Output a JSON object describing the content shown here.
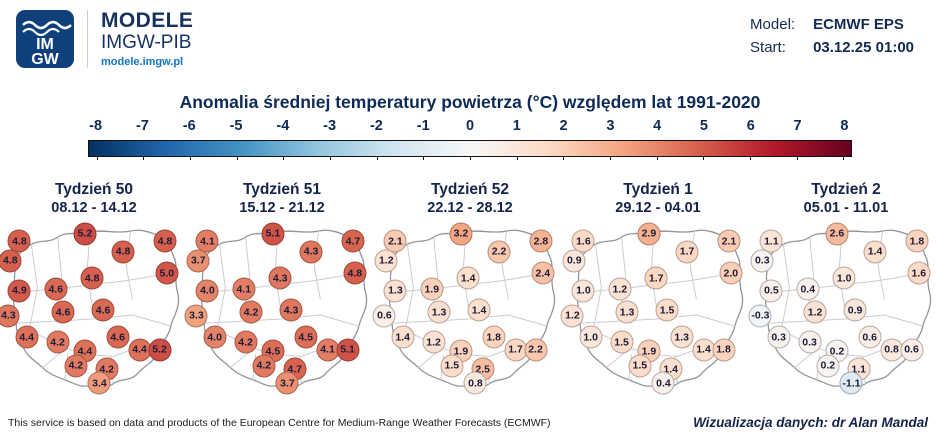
{
  "header": {
    "brand_name": "MODELE",
    "brand_sub": "IMGW-PIB",
    "brand_url": "modele.imgw.pl",
    "logo_top": "IM",
    "logo_bottom": "GW",
    "model_label": "Model:",
    "model_value": "ECMWF EPS",
    "start_label": "Start:",
    "start_value": "03.12.25 01:00"
  },
  "title": "Anomalia średniej temperatury powietrza (°C) względem lat 1991-2020",
  "colorbar": {
    "ticks": [
      -8,
      -7,
      -6,
      -5,
      -4,
      -3,
      -2,
      -1,
      0,
      1,
      2,
      3,
      4,
      5,
      6,
      7,
      8
    ],
    "stops": [
      "#053061",
      "#2166ac",
      "#4393c3",
      "#92c5de",
      "#d1e5f0",
      "#f7f7f7",
      "#fddbc7",
      "#f4a582",
      "#d6604d",
      "#b2182b",
      "#67001f"
    ],
    "min": -8,
    "max": 8
  },
  "footer": {
    "left": "This service is based on data and products of the European Centre for Medium-Range Weather Forecasts (ECMWF)",
    "right": "Wizualizacja danych: dr Alan Mandal"
  },
  "chart_data": {
    "type": "heatmap",
    "subtype": "bubble-maps-of-poland",
    "title": "Anomalia średniej temperatury powietrza (°C) względem lat 1991-2020",
    "units": "°C",
    "value_range": [
      -8,
      8
    ],
    "color_scale": [
      [
        -8,
        "#053061"
      ],
      [
        -6.4,
        "#2166ac"
      ],
      [
        -4.8,
        "#4393c3"
      ],
      [
        -3.2,
        "#92c5de"
      ],
      [
        -1.6,
        "#d1e5f0"
      ],
      [
        0,
        "#f7f7f7"
      ],
      [
        1.6,
        "#fddbc7"
      ],
      [
        3.2,
        "#f4a582"
      ],
      [
        4.8,
        "#d6604d"
      ],
      [
        6.4,
        "#b2182b"
      ],
      [
        8,
        "#67001f"
      ]
    ],
    "stations": [
      {
        "x": 9,
        "y": 9
      },
      {
        "x": 45,
        "y": 5
      },
      {
        "x": 66,
        "y": 15
      },
      {
        "x": 89,
        "y": 9
      },
      {
        "x": 4,
        "y": 20
      },
      {
        "x": 90,
        "y": 27
      },
      {
        "x": 9,
        "y": 37
      },
      {
        "x": 29,
        "y": 36
      },
      {
        "x": 49,
        "y": 30
      },
      {
        "x": 3,
        "y": 51
      },
      {
        "x": 33,
        "y": 49
      },
      {
        "x": 55,
        "y": 48
      },
      {
        "x": 13,
        "y": 63
      },
      {
        "x": 30,
        "y": 66
      },
      {
        "x": 45,
        "y": 71
      },
      {
        "x": 63,
        "y": 63
      },
      {
        "x": 75,
        "y": 70
      },
      {
        "x": 86,
        "y": 70
      },
      {
        "x": 40,
        "y": 79
      },
      {
        "x": 57,
        "y": 81
      },
      {
        "x": 53,
        "y": 89
      }
    ],
    "panels": [
      {
        "title": "Tydzień 50",
        "dates": "08.12 - 14.12",
        "values": [
          4.8,
          5.2,
          4.8,
          4.8,
          4.8,
          5.0,
          4.9,
          4.6,
          4.8,
          4.3,
          4.6,
          4.6,
          4.4,
          4.2,
          4.4,
          4.6,
          4.4,
          5.2,
          4.2,
          4.2,
          3.4
        ]
      },
      {
        "title": "Tydzień 51",
        "dates": "15.12 - 21.12",
        "values": [
          4.1,
          5.1,
          4.3,
          4.7,
          3.7,
          4.8,
          4.0,
          4.1,
          4.3,
          3.3,
          4.2,
          4.3,
          4.0,
          4.2,
          4.5,
          4.5,
          4.1,
          5.1,
          4.2,
          4.7,
          3.7
        ]
      },
      {
        "title": "Tydzień 52",
        "dates": "22.12 - 28.12",
        "values": [
          2.1,
          3.2,
          2.2,
          2.8,
          1.2,
          2.4,
          1.3,
          1.9,
          1.4,
          0.6,
          1.3,
          1.4,
          1.4,
          1.2,
          1.9,
          1.8,
          1.7,
          2.2,
          1.5,
          2.5,
          0.8
        ]
      },
      {
        "title": "Tydzień 1",
        "dates": "29.12 - 04.01",
        "values": [
          1.6,
          2.9,
          1.7,
          2.1,
          0.9,
          2.0,
          1.0,
          1.2,
          1.7,
          1.2,
          1.3,
          1.5,
          1.0,
          1.5,
          1.9,
          1.3,
          1.4,
          1.8,
          1.5,
          1.4,
          0.4
        ]
      },
      {
        "title": "Tydzień 2",
        "dates": "05.01 - 11.01",
        "values": [
          1.1,
          2.6,
          1.4,
          1.8,
          0.3,
          1.6,
          0.5,
          0.4,
          1.0,
          -0.3,
          1.2,
          0.9,
          0.3,
          0.3,
          0.2,
          0.6,
          0.8,
          0.6,
          0.2,
          1.1,
          -1.1
        ]
      }
    ]
  }
}
